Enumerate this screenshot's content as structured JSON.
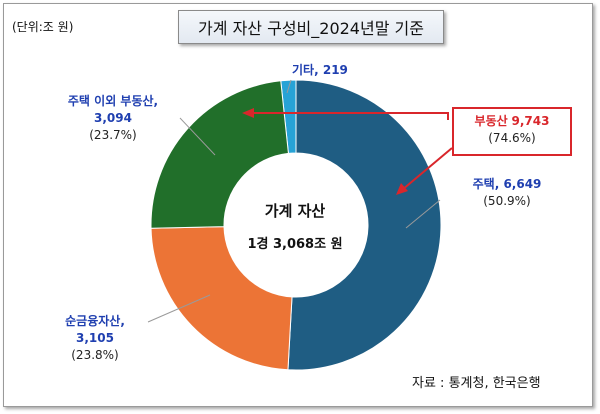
{
  "chart_data": {
    "type": "pie",
    "variant": "donut",
    "title": "가계 자산 구성비_2024년말 기준",
    "unit_label": "(단위:조 원)",
    "center_title": "가계 자산",
    "center_total": "1경 3,068조 원",
    "source": "자료 : 통계청, 한국은행",
    "slices": [
      {
        "name": "기타",
        "value": 219,
        "value_text": "219",
        "percent_text": "",
        "color": "#27a3d6"
      },
      {
        "name": "주택",
        "value": 6649,
        "value_text": "6,649",
        "percent_text": "(50.9%)",
        "color": "#1f5d83"
      },
      {
        "name": "순금융자산",
        "value": 3105,
        "value_text": "3,105",
        "percent_text": "(23.8%)",
        "color": "#ec7436"
      },
      {
        "name": "주택 이외 부동산",
        "value": 3094,
        "value_text": "3,094",
        "percent_text": "(23.7%)",
        "color": "#216f2a"
      }
    ],
    "highlight": {
      "name": "부동산",
      "value": 9743,
      "value_text": "9,743",
      "percent_text": "(74.6%)",
      "color": "#d9262b"
    }
  }
}
